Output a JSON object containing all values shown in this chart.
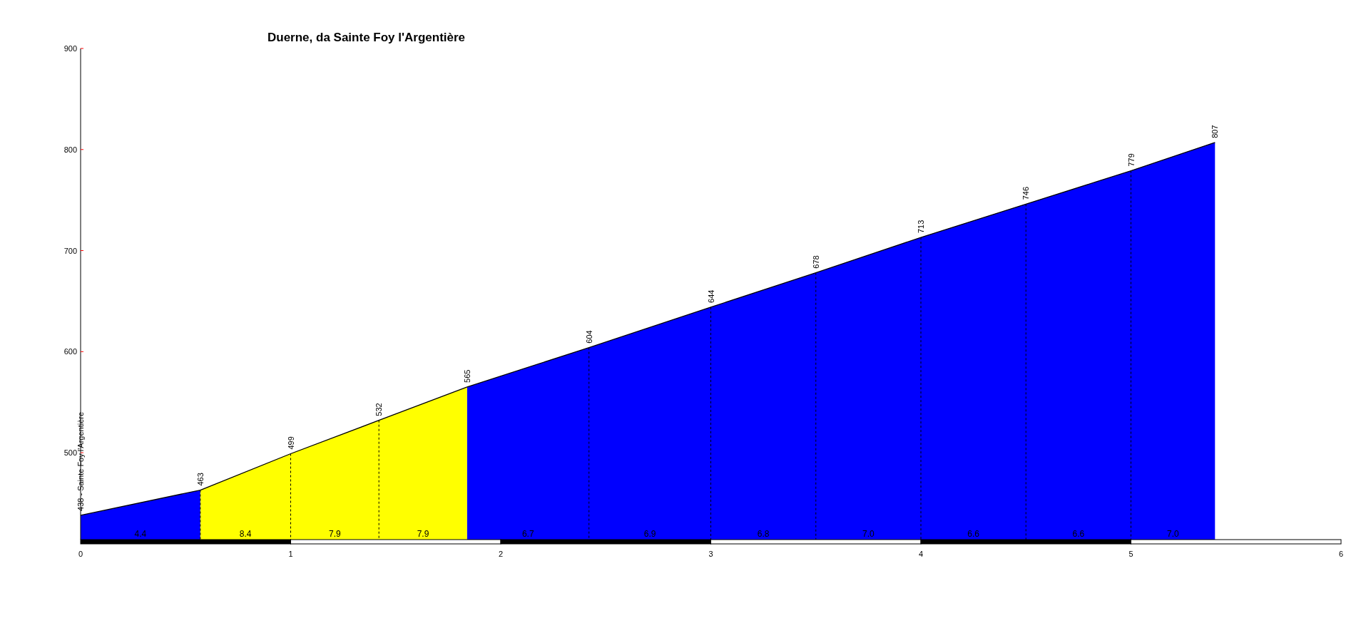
{
  "chart_data": {
    "type": "area",
    "title": "Duerne, da Sainte Foy l'Argentière",
    "xlim": [
      0,
      6
    ],
    "xticks": [
      0,
      1,
      2,
      3,
      4,
      5,
      6
    ],
    "ylim": [
      414,
      900
    ],
    "yticks": [
      500,
      600,
      700,
      800,
      900
    ],
    "series": [
      {
        "color": "#0000ff",
        "x": [
          0,
          0.57
        ],
        "values": [
          438,
          463
        ],
        "value_labels": [
          "438 - Sainte Foy  l'Argentière",
          "463"
        ]
      },
      {
        "color": "#ffff00",
        "x": [
          0.57,
          1.0,
          1.42,
          1.84
        ],
        "values": [
          463,
          499,
          532,
          565
        ],
        "value_labels": [
          null,
          "499",
          "532",
          "565"
        ]
      },
      {
        "color": "#0000ff",
        "x": [
          1.84,
          2.42,
          3.0,
          3.5,
          4.0,
          4.5,
          5.0,
          5.4
        ],
        "values": [
          565,
          604,
          644,
          678,
          713,
          746,
          779,
          807
        ],
        "value_labels": [
          null,
          "604",
          "644",
          "678",
          "713",
          "746",
          "779",
          "807"
        ]
      }
    ],
    "annotations": [
      "4.4",
      "8.4",
      "7.9",
      "7.9",
      "6.7",
      "6.9",
      "6.8",
      "7.0",
      "6.6",
      "6.6",
      "7.0"
    ]
  }
}
